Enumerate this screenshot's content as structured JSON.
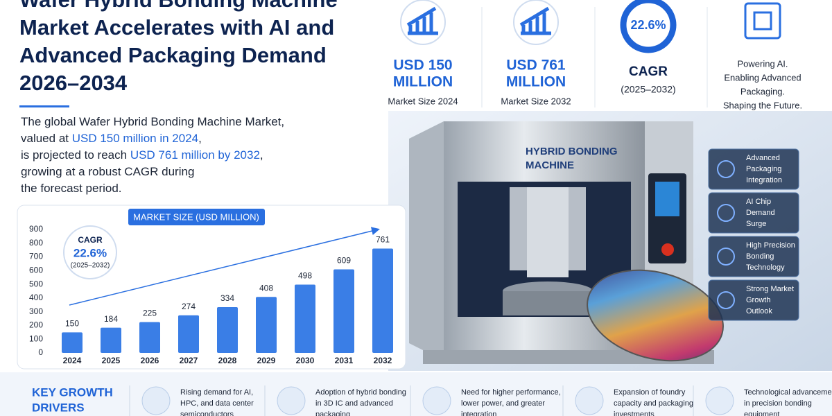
{
  "headline": [
    "Wafer Hybrid Bonding Machine",
    "Market Accelerates with AI and",
    "Advanced Packaging Demand",
    "2026–2034"
  ],
  "intro": [
    [
      {
        "text": "The global Wafer Hybrid Bonding Machine Market,"
      }
    ],
    [
      {
        "text": "valued at "
      },
      {
        "text": "USD 150 million in 2024",
        "emphasis": true
      },
      {
        "text": ","
      }
    ],
    [
      {
        "text": "is projected to reach "
      },
      {
        "text": "USD 761 million by 2032",
        "emphasis": true
      },
      {
        "text": ","
      }
    ],
    [
      {
        "text": "growing at a robust CAGR during"
      }
    ],
    [
      {
        "text": "the forecast period."
      }
    ]
  ],
  "stats": [
    {
      "value": [
        "USD 150",
        "MILLION"
      ],
      "caption": "Market Size 2024"
    },
    {
      "value": [
        "USD 761",
        "MILLION"
      ],
      "caption": "Market Size 2032"
    }
  ],
  "cagr_stat": {
    "value": "22.6%",
    "label": "CAGR",
    "caption": "(2025–2032)"
  },
  "tagline": [
    "Powering AI.",
    "Enabling Advanced",
    "Packaging.",
    "Shaping the Future."
  ],
  "machine_label": [
    "HYBRID BONDING",
    "MACHINE"
  ],
  "features": [
    [
      "Advanced",
      "Packaging",
      "Integration"
    ],
    [
      "AI Chip",
      "Demand",
      "Surge"
    ],
    [
      "High Precision",
      "Bonding",
      "Technology"
    ],
    [
      "Strong Market",
      "Growth",
      "Outlook"
    ]
  ],
  "drivers": {
    "title": [
      "KEY GROWTH",
      "DRIVERS"
    ],
    "items": [
      [
        "Rising demand for AI,",
        "HPC, and data center",
        "semiconductors"
      ],
      [
        "Adoption of hybrid bonding",
        "in 3D IC and advanced",
        "packaging"
      ],
      [
        "Need for higher performance,",
        "lower power, and greater",
        "integration"
      ],
      [
        "Expansion of foundry",
        "capacity and packaging",
        "investments"
      ],
      [
        "Technological advancements",
        "in precision bonding",
        "equipment"
      ]
    ]
  },
  "chart_data": {
    "type": "bar",
    "title": "MARKET SIZE (USD MILLION)",
    "categories": [
      "2024",
      "2025",
      "2026",
      "2027",
      "2028",
      "2029",
      "2030",
      "2031",
      "2032"
    ],
    "values": [
      150,
      184,
      225,
      274,
      334,
      408,
      498,
      609,
      761
    ],
    "color": "#3a7ee6",
    "ylim": [
      0,
      900
    ],
    "yticks": [
      0,
      100,
      200,
      300,
      400,
      500,
      600,
      700,
      800,
      900
    ],
    "annotation": {
      "label": "CAGR",
      "value": "22.6%",
      "period": "(2025–2032)"
    }
  }
}
